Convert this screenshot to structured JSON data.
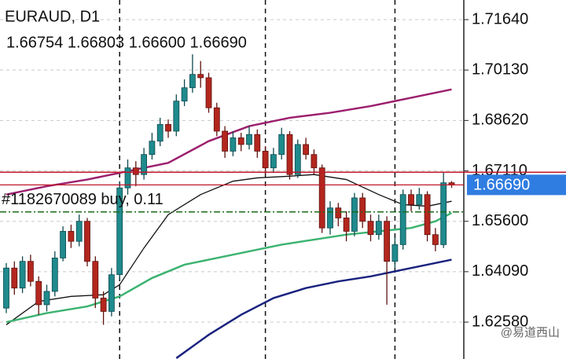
{
  "chart_data": {
    "type": "candlestick",
    "title": "EURAUD, D1",
    "ohlc_text": "1.66754 1.66803 1.66600 1.66690",
    "open": [
      1.63,
      1.642,
      1.636,
      1.644,
      1.638,
      1.631,
      1.635,
      1.645,
      1.653,
      1.65,
      1.656,
      1.644,
      1.633,
      1.629,
      1.64,
      1.666,
      1.672,
      1.67,
      1.676,
      1.68,
      1.685,
      1.683,
      1.692,
      1.696,
      1.7,
      1.699,
      1.69,
      1.683,
      1.677,
      1.681,
      1.679,
      1.682,
      1.677,
      1.672,
      1.676,
      1.682,
      1.67,
      1.679,
      1.676,
      1.672,
      1.654,
      1.66,
      1.657,
      1.653,
      1.663,
      1.656,
      1.652,
      1.656,
      1.644,
      1.649,
      1.664,
      1.661,
      1.664,
      1.652,
      1.649,
      1.66754
    ],
    "high": [
      1.6435,
      1.644,
      1.6455,
      1.646,
      1.6395,
      1.637,
      1.647,
      1.6545,
      1.655,
      1.658,
      1.657,
      1.6455,
      1.635,
      1.642,
      1.668,
      1.6745,
      1.674,
      1.678,
      1.6825,
      1.687,
      1.6865,
      1.694,
      1.6985,
      1.706,
      1.704,
      1.7005,
      1.6915,
      1.6845,
      1.683,
      1.6825,
      1.6845,
      1.6835,
      1.6785,
      1.678,
      1.684,
      1.683,
      1.6805,
      1.681,
      1.6775,
      1.673,
      1.662,
      1.6615,
      1.659,
      1.6645,
      1.6645,
      1.658,
      1.658,
      1.6575,
      1.651,
      1.6655,
      1.6655,
      1.666,
      1.665,
      1.654,
      1.6705,
      1.66803
    ],
    "low": [
      1.6285,
      1.634,
      1.6345,
      1.6365,
      1.628,
      1.629,
      1.6335,
      1.644,
      1.648,
      1.6485,
      1.6425,
      1.63,
      1.625,
      1.6275,
      1.6385,
      1.664,
      1.6665,
      1.6685,
      1.6745,
      1.6785,
      1.681,
      1.6815,
      1.6905,
      1.6945,
      1.696,
      1.6885,
      1.6815,
      1.675,
      1.6755,
      1.677,
      1.6775,
      1.675,
      1.67,
      1.6705,
      1.6745,
      1.6685,
      1.669,
      1.6745,
      1.67,
      1.6525,
      1.652,
      1.6545,
      1.65,
      1.6515,
      1.654,
      1.65,
      1.6505,
      1.631,
      1.642,
      1.6475,
      1.659,
      1.6595,
      1.65,
      1.647,
      1.648,
      1.666
    ],
    "close": [
      1.642,
      1.636,
      1.644,
      1.638,
      1.631,
      1.635,
      1.645,
      1.653,
      1.65,
      1.656,
      1.644,
      1.633,
      1.629,
      1.64,
      1.666,
      1.672,
      1.67,
      1.676,
      1.68,
      1.685,
      1.683,
      1.692,
      1.696,
      1.7,
      1.699,
      1.69,
      1.683,
      1.677,
      1.681,
      1.679,
      1.682,
      1.677,
      1.672,
      1.676,
      1.682,
      1.67,
      1.679,
      1.676,
      1.672,
      1.654,
      1.66,
      1.657,
      1.653,
      1.663,
      1.656,
      1.652,
      1.656,
      1.644,
      1.649,
      1.664,
      1.661,
      1.664,
      1.652,
      1.649,
      1.66754,
      1.6669
    ],
    "up_color": "#1f8a8c",
    "down_color": "#b3261e",
    "lines": [
      {
        "color": "#111111",
        "x": [
          0,
          4,
          8,
          12,
          14,
          17,
          20,
          24,
          28,
          31,
          35,
          38,
          42,
          46,
          49,
          52,
          55
        ],
        "values": [
          1.625,
          1.632,
          1.6335,
          1.634,
          1.637,
          1.648,
          1.658,
          1.664,
          1.668,
          1.669,
          1.6695,
          1.67,
          1.6685,
          1.664,
          1.661,
          1.6605,
          1.662
        ]
      },
      {
        "color": "#3cb371",
        "x": [
          0,
          5,
          10,
          14,
          18,
          22,
          26,
          30,
          34,
          38,
          42,
          46,
          50,
          53,
          55
        ],
        "values": [
          1.6258,
          1.6285,
          1.6305,
          1.6335,
          1.639,
          1.643,
          1.645,
          1.647,
          1.649,
          1.6505,
          1.652,
          1.653,
          1.654,
          1.656,
          1.6585
        ]
      },
      {
        "color": "#1a237e",
        "x": [
          21,
          25,
          29,
          33,
          37,
          41,
          45,
          48,
          52,
          55
        ],
        "values": [
          1.615,
          1.622,
          1.628,
          1.633,
          1.636,
          1.638,
          1.6395,
          1.641,
          1.643,
          1.6445
        ]
      },
      {
        "color": "#9c1f6e",
        "x": [
          0,
          5,
          10,
          15,
          20,
          25,
          30,
          35,
          40,
          45,
          50,
          55
        ],
        "values": [
          1.664,
          1.6665,
          1.6685,
          1.671,
          1.6735,
          1.68,
          1.6845,
          1.687,
          1.6885,
          1.6905,
          1.693,
          1.6955
        ]
      }
    ],
    "separators": [
      14,
      32,
      48
    ],
    "order": {
      "label": "#1182670089 buy, 0.11",
      "value": 1.6588
    },
    "ask": 1.6707,
    "price": {
      "value": 1.6669,
      "label": "1.66690"
    },
    "ylim": [
      1.61475,
      1.72228
    ],
    "yticks": [
      {
        "value": 1.7164,
        "label": "1.71640"
      },
      {
        "value": 1.7013,
        "label": "1.70130"
      },
      {
        "value": 1.6862,
        "label": "1.68620"
      },
      {
        "value": 1.6711,
        "label": "1.67110"
      },
      {
        "value": 1.656,
        "label": "1.65600"
      },
      {
        "value": 1.6409,
        "label": "1.64090"
      },
      {
        "value": 1.6258,
        "label": "1.62580"
      }
    ],
    "grid": true,
    "watermark": "@易道西山"
  }
}
